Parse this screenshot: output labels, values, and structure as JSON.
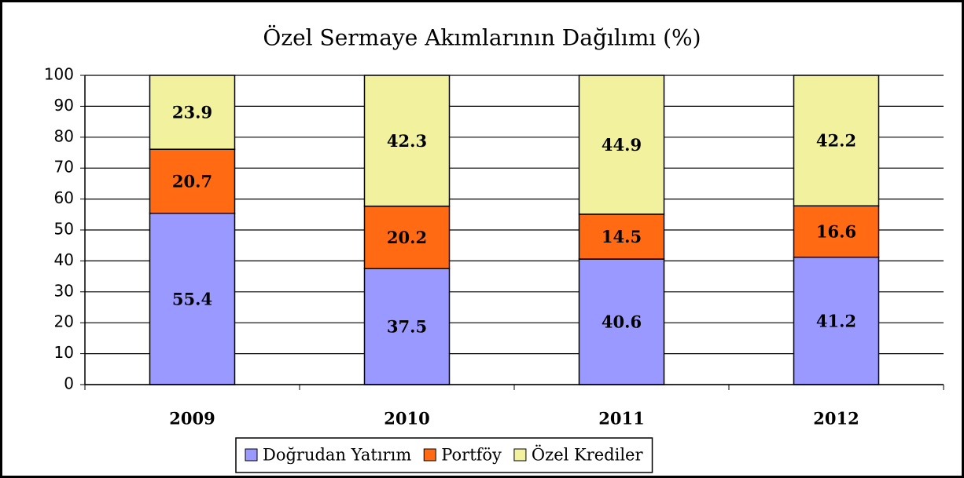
{
  "chart_data": {
    "type": "stacked_bar",
    "title": "Özel Sermaye Akımlarının Dağılımı (%)",
    "categories": [
      "2009",
      "2010",
      "2011",
      "2012"
    ],
    "series": [
      {
        "name": "Doğrudan Yatırım",
        "color": "#9999ff",
        "values": [
          55.4,
          37.5,
          40.6,
          41.2
        ]
      },
      {
        "name": "Portföy",
        "color": "#ff6a13",
        "values": [
          20.7,
          20.2,
          14.5,
          16.6
        ]
      },
      {
        "name": "Özel Krediler",
        "color": "#f2f29e",
        "values": [
          23.9,
          42.3,
          44.9,
          42.2
        ]
      }
    ],
    "ylim": [
      0,
      100
    ],
    "yticks": [
      0,
      10,
      20,
      30,
      40,
      50,
      60,
      70,
      80,
      90,
      100
    ],
    "grid": true,
    "legend": "bottom"
  }
}
